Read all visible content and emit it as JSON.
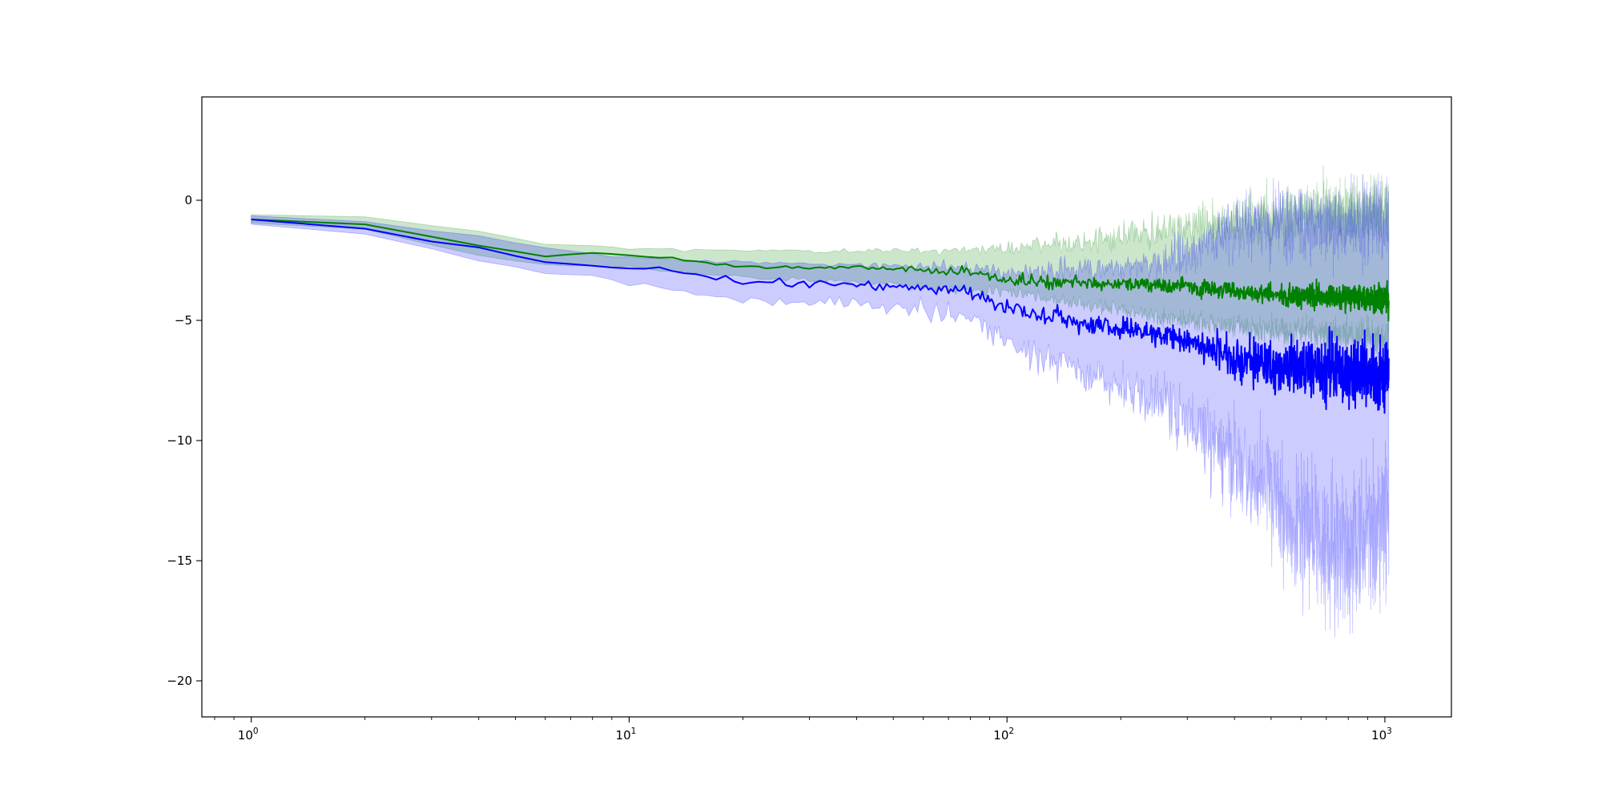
{
  "chart_data": {
    "type": "line",
    "title": "",
    "xlabel": "",
    "ylabel": "",
    "xscale": "log",
    "xlim": [
      0.74,
      1500
    ],
    "ylim": [
      -21.5,
      4.3
    ],
    "grid": false,
    "legend": "none",
    "x_major_ticks": [
      1,
      10,
      100,
      1000
    ],
    "x_tick_labels": [
      {
        "base": "10",
        "exp": "0"
      },
      {
        "base": "10",
        "exp": "1"
      },
      {
        "base": "10",
        "exp": "2"
      },
      {
        "base": "10",
        "exp": "3"
      }
    ],
    "y_ticks": [
      0,
      -5,
      -10,
      -15,
      -20
    ],
    "y_tick_labels": [
      "0",
      "−5",
      "−10",
      "−15",
      "−20"
    ],
    "x_range": [
      1,
      1024
    ],
    "colors": {
      "series_1": "#008000",
      "series_1_band": "#008000",
      "series_2": "#0000ff",
      "series_2_band": "#0000ff"
    },
    "series": [
      {
        "color": "#008000",
        "anchors": [
          [
            1,
            -0.8
          ],
          [
            2,
            -1.0
          ],
          [
            4,
            -1.9
          ],
          [
            6,
            -2.3
          ],
          [
            8,
            -2.2
          ],
          [
            10,
            -2.3
          ],
          [
            13,
            -2.4
          ],
          [
            20,
            -2.8
          ],
          [
            40,
            -2.8
          ],
          [
            80,
            -3.0
          ],
          [
            100,
            -3.3
          ],
          [
            200,
            -3.5
          ],
          [
            300,
            -3.6
          ],
          [
            500,
            -3.9
          ],
          [
            700,
            -4.0
          ],
          [
            1024,
            -4.1
          ]
        ],
        "noise": [
          [
            1,
            0
          ],
          [
            40,
            0.1
          ],
          [
            100,
            0.25
          ],
          [
            200,
            0.3
          ],
          [
            400,
            0.4
          ],
          [
            700,
            0.5
          ],
          [
            1024,
            0.6
          ]
        ],
        "band_upper": [
          [
            1,
            -0.6
          ],
          [
            2,
            -0.7
          ],
          [
            4,
            -1.3
          ],
          [
            6,
            -1.8
          ],
          [
            10,
            -2.0
          ],
          [
            20,
            -2.1
          ],
          [
            40,
            -2.1
          ],
          [
            80,
            -2.1
          ],
          [
            100,
            -2.0
          ],
          [
            150,
            -1.8
          ],
          [
            200,
            -1.6
          ],
          [
            300,
            -1.1
          ],
          [
            500,
            -0.8
          ],
          [
            700,
            -0.5
          ],
          [
            1024,
            -0.3
          ]
        ],
        "band_upper_noise": [
          [
            1,
            0
          ],
          [
            50,
            0.1
          ],
          [
            100,
            0.3
          ],
          [
            200,
            0.6
          ],
          [
            300,
            0.9
          ],
          [
            500,
            1.2
          ],
          [
            700,
            1.4
          ],
          [
            1024,
            1.4
          ]
        ],
        "band_lower": [
          [
            1,
            -0.9
          ],
          [
            2,
            -1.2
          ],
          [
            4,
            -2.3
          ],
          [
            6,
            -2.7
          ],
          [
            10,
            -2.8
          ],
          [
            20,
            -3.2
          ],
          [
            40,
            -3.4
          ],
          [
            80,
            -3.7
          ],
          [
            100,
            -3.8
          ],
          [
            200,
            -4.6
          ],
          [
            300,
            -5.0
          ],
          [
            500,
            -5.4
          ],
          [
            700,
            -5.6
          ],
          [
            1024,
            -5.8
          ]
        ],
        "band_lower_noise": [
          [
            1,
            0
          ],
          [
            50,
            0.1
          ],
          [
            100,
            0.25
          ],
          [
            200,
            0.35
          ],
          [
            400,
            0.5
          ],
          [
            700,
            0.7
          ],
          [
            1024,
            0.8
          ]
        ]
      },
      {
        "color": "#0000ff",
        "anchors": [
          [
            1,
            -0.8
          ],
          [
            2,
            -1.2
          ],
          [
            4,
            -2.0
          ],
          [
            6,
            -2.6
          ],
          [
            10,
            -2.8
          ],
          [
            13,
            -2.9
          ],
          [
            20,
            -3.4
          ],
          [
            40,
            -3.5
          ],
          [
            80,
            -3.8
          ],
          [
            100,
            -4.5
          ],
          [
            150,
            -5.0
          ],
          [
            200,
            -5.3
          ],
          [
            300,
            -5.8
          ],
          [
            400,
            -6.5
          ],
          [
            500,
            -6.9
          ],
          [
            700,
            -7.0
          ],
          [
            1024,
            -7.2
          ]
        ],
        "noise": [
          [
            1,
            0
          ],
          [
            15,
            0.1
          ],
          [
            40,
            0.2
          ],
          [
            80,
            0.3
          ],
          [
            150,
            0.4
          ],
          [
            300,
            0.6
          ],
          [
            400,
            0.9
          ],
          [
            600,
            1.2
          ],
          [
            1024,
            1.4
          ]
        ],
        "band_upper": [
          [
            1,
            -0.7
          ],
          [
            2,
            -0.9
          ],
          [
            4,
            -1.5
          ],
          [
            6,
            -2.0
          ],
          [
            10,
            -2.4
          ],
          [
            20,
            -2.6
          ],
          [
            40,
            -2.7
          ],
          [
            80,
            -2.8
          ],
          [
            100,
            -3.0
          ],
          [
            200,
            -2.8
          ],
          [
            300,
            -2.3
          ],
          [
            400,
            -1.0
          ],
          [
            600,
            -1.0
          ],
          [
            800,
            -0.8
          ],
          [
            1024,
            -0.8
          ]
        ],
        "band_upper_noise": [
          [
            1,
            0
          ],
          [
            40,
            0.1
          ],
          [
            100,
            0.3
          ],
          [
            200,
            0.6
          ],
          [
            300,
            1.0
          ],
          [
            400,
            1.4
          ],
          [
            600,
            1.6
          ],
          [
            800,
            1.8
          ],
          [
            1024,
            1.7
          ]
        ],
        "band_lower": [
          [
            1,
            -1.0
          ],
          [
            2,
            -1.4
          ],
          [
            4,
            -2.5
          ],
          [
            6,
            -3.0
          ],
          [
            10,
            -3.4
          ],
          [
            20,
            -4.2
          ],
          [
            40,
            -4.3
          ],
          [
            80,
            -4.8
          ],
          [
            100,
            -6.0
          ],
          [
            150,
            -7.0
          ],
          [
            200,
            -7.8
          ],
          [
            300,
            -9.0
          ],
          [
            400,
            -11.0
          ],
          [
            500,
            -12.5
          ],
          [
            600,
            -13.5
          ],
          [
            800,
            -15.0
          ],
          [
            1024,
            -13.5
          ]
        ],
        "band_lower_noise": [
          [
            1,
            0
          ],
          [
            40,
            0.25
          ],
          [
            80,
            0.5
          ],
          [
            150,
            0.8
          ],
          [
            300,
            1.3
          ],
          [
            400,
            2.2
          ],
          [
            600,
            2.8
          ],
          [
            800,
            3.2
          ],
          [
            1024,
            3.0
          ]
        ]
      }
    ]
  }
}
